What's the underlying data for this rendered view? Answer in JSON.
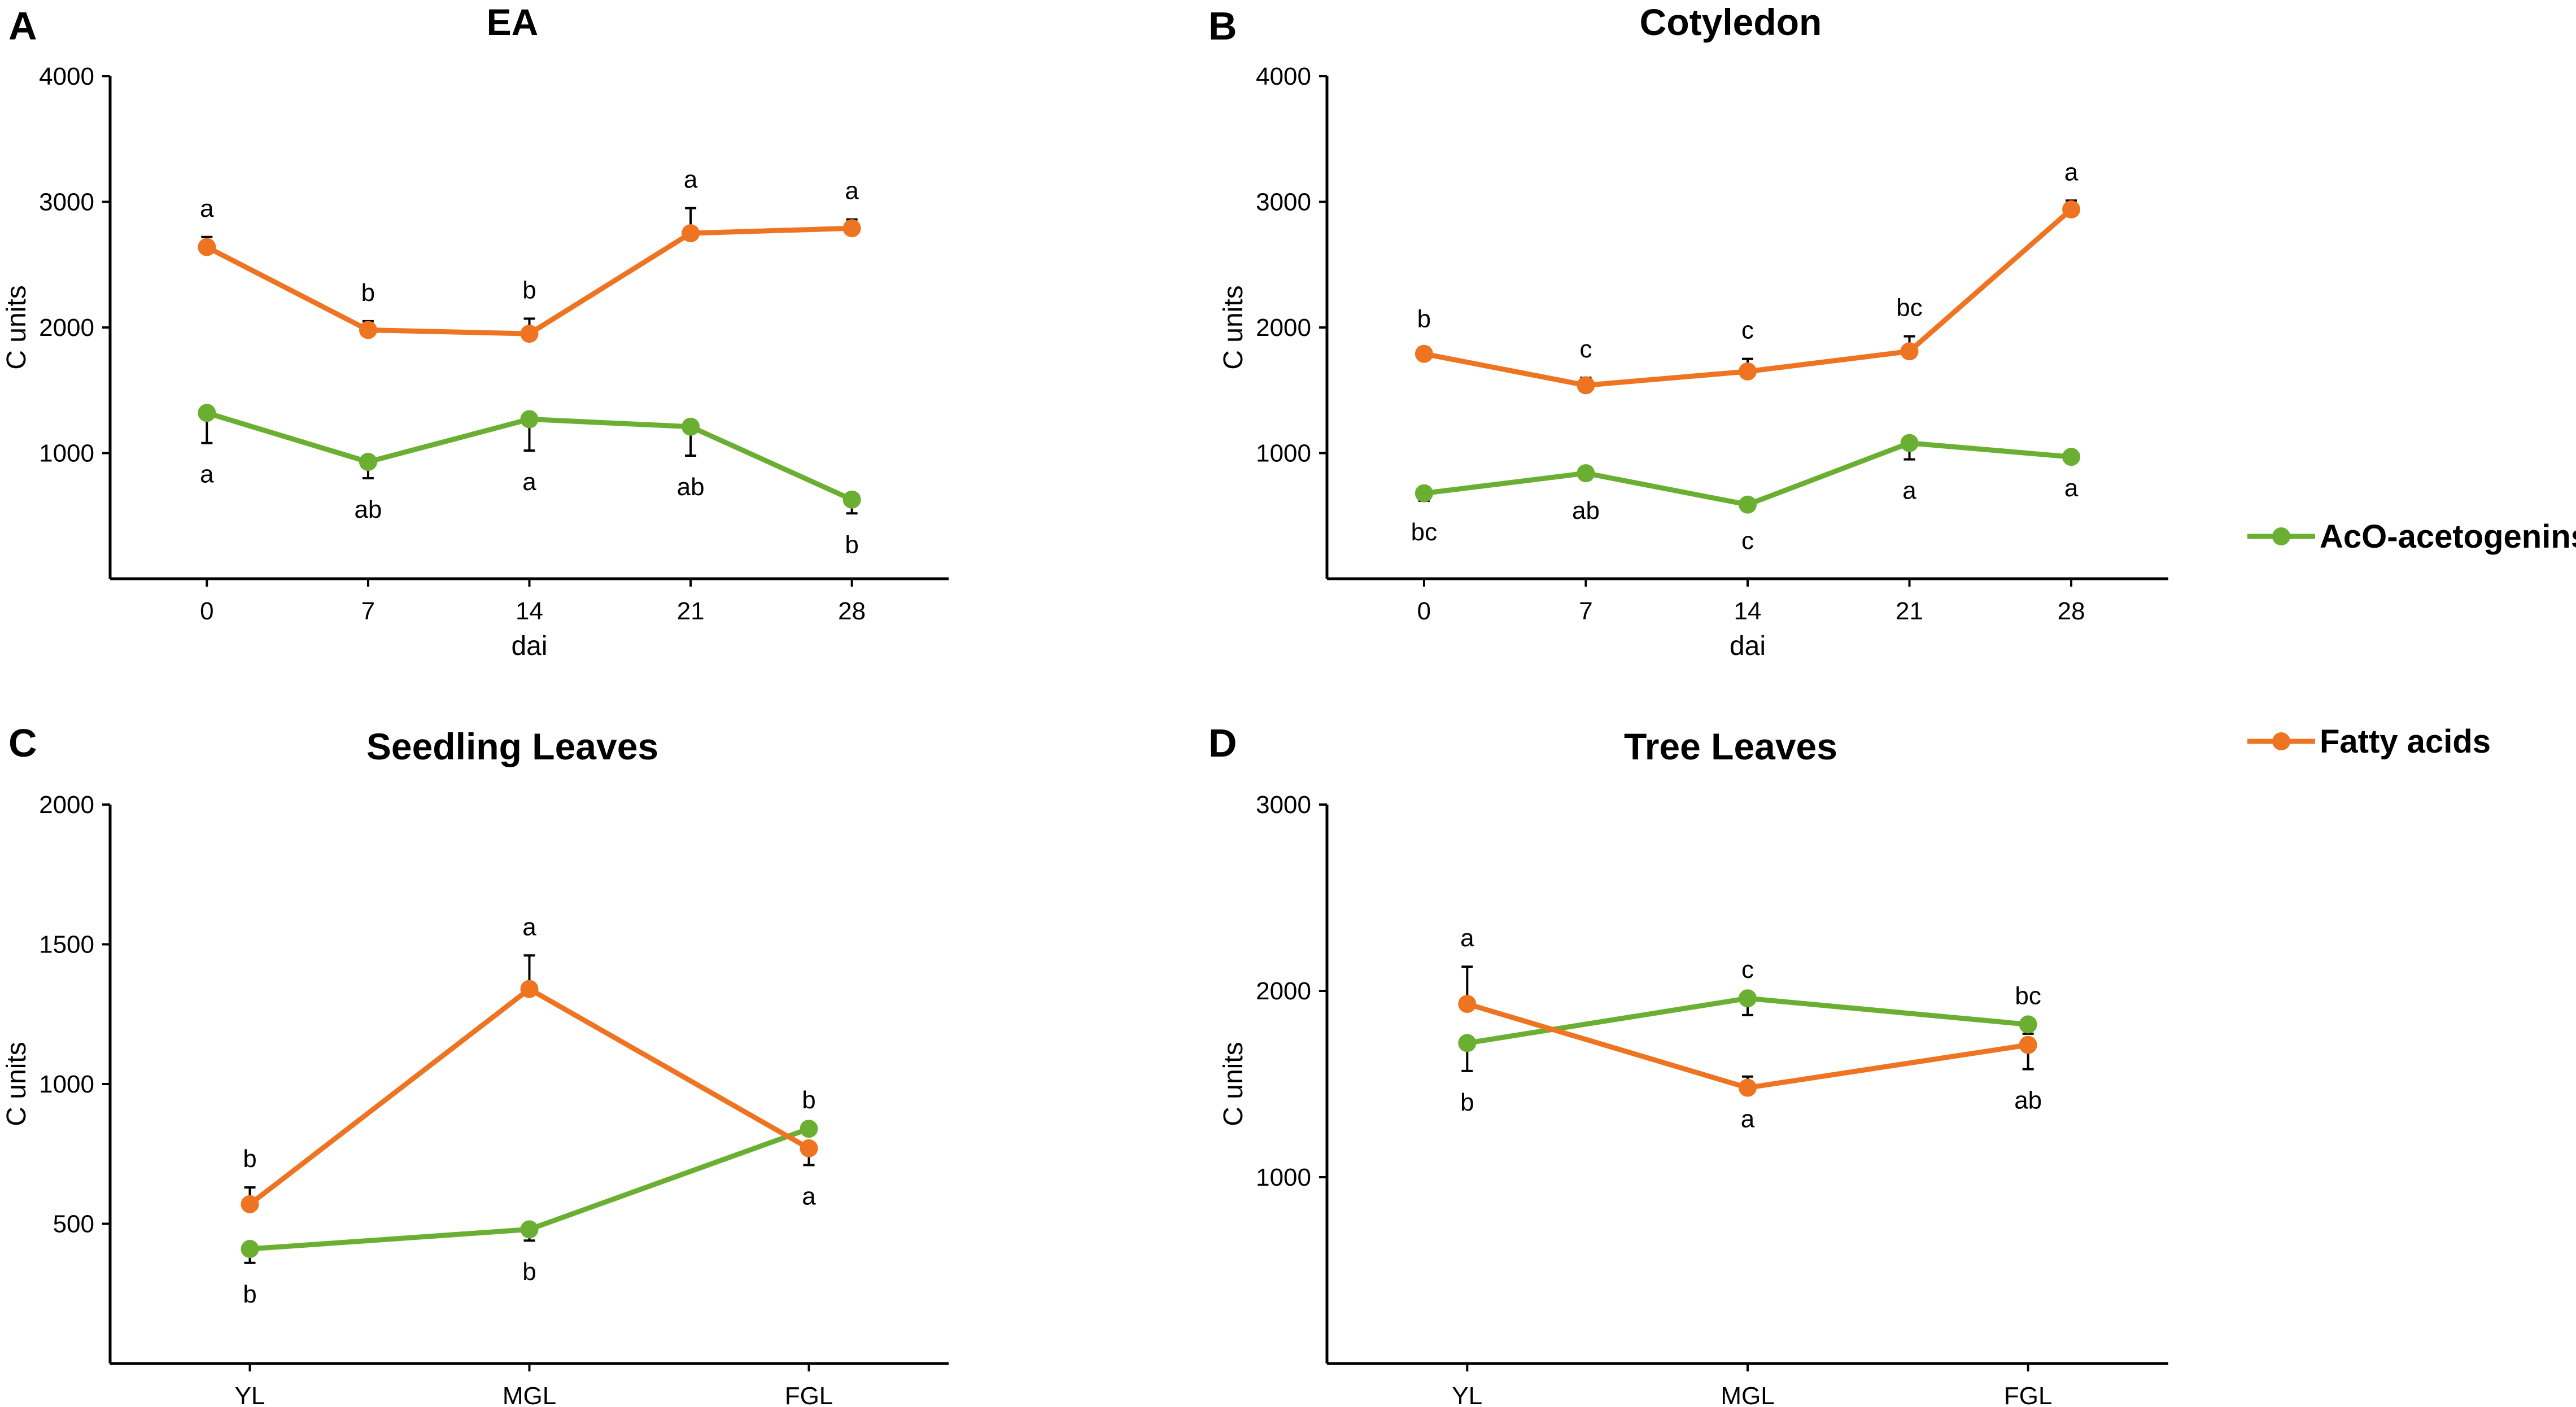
{
  "colors": {
    "acetogenins": "#6aaf32",
    "fatty_acids": "#ee7422",
    "axis": "#000000"
  },
  "legend": [
    {
      "name": "AcO-acetogenins",
      "color": "#6aaf32"
    },
    {
      "name": "Fatty acids",
      "color": "#ee7422"
    }
  ],
  "chart_data": [
    {
      "type": "line",
      "panel": "A",
      "title": "EA",
      "xlabel": "dai",
      "ylabel": "C units",
      "categories": [
        "0",
        "7",
        "14",
        "21",
        "28"
      ],
      "ylim": [
        0,
        4000
      ],
      "yticks": [
        1000,
        2000,
        3000,
        4000
      ],
      "series": [
        {
          "name": "AcO-acetogenins",
          "values": [
            1320,
            930,
            1270,
            1210,
            630
          ],
          "err_low": [
            240,
            130,
            250,
            230,
            110
          ],
          "err_high": [
            0,
            0,
            0,
            0,
            0
          ],
          "labels": [
            "a",
            "ab",
            "a",
            "ab",
            "b"
          ],
          "label_side": [
            "below",
            "below",
            "below",
            "below",
            "below"
          ]
        },
        {
          "name": "Fatty acids",
          "values": [
            2640,
            1980,
            1950,
            2750,
            2790
          ],
          "err_low": [
            0,
            0,
            0,
            0,
            0
          ],
          "err_high": [
            80,
            70,
            120,
            200,
            70
          ],
          "labels": [
            "a",
            "b",
            "b",
            "a",
            "a"
          ],
          "label_side": [
            "above",
            "above",
            "above",
            "above",
            "above"
          ]
        }
      ]
    },
    {
      "type": "line",
      "panel": "B",
      "title": "Cotyledon",
      "xlabel": "dai",
      "ylabel": "C units",
      "categories": [
        "0",
        "7",
        "14",
        "21",
        "28"
      ],
      "ylim": [
        0,
        4000
      ],
      "yticks": [
        1000,
        2000,
        3000,
        4000
      ],
      "series": [
        {
          "name": "AcO-acetogenins",
          "values": [
            680,
            840,
            590,
            1080,
            970
          ],
          "err_low": [
            60,
            50,
            40,
            130,
            0
          ],
          "err_high": [
            0,
            0,
            0,
            0,
            0
          ],
          "labels": [
            "bc",
            "ab",
            "c",
            "a",
            "a"
          ],
          "label_side": [
            "below",
            "below",
            "below",
            "below",
            "below"
          ]
        },
        {
          "name": "Fatty acids",
          "values": [
            1790,
            1540,
            1650,
            1810,
            2940
          ],
          "err_low": [
            0,
            0,
            0,
            0,
            0
          ],
          "err_high": [
            50,
            60,
            100,
            120,
            70
          ],
          "labels": [
            "b",
            "c",
            "c",
            "bc",
            "a"
          ],
          "label_side": [
            "above",
            "above",
            "above",
            "above",
            "above"
          ]
        }
      ]
    },
    {
      "type": "line",
      "panel": "C",
      "title": "Seedling Leaves",
      "xlabel": "",
      "ylabel": "C units",
      "categories": [
        "YL",
        "MGL",
        "FGL"
      ],
      "ylim": [
        0,
        2000
      ],
      "yticks": [
        500,
        1000,
        1500,
        2000
      ],
      "series": [
        {
          "name": "AcO-acetogenins",
          "values": [
            410,
            480,
            840
          ],
          "err_low": [
            50,
            40,
            0
          ],
          "err_high": [
            0,
            0,
            0
          ],
          "labels": [
            "b",
            "b",
            "b"
          ],
          "label_side": [
            "below",
            "below",
            "above"
          ]
        },
        {
          "name": "Fatty acids",
          "values": [
            570,
            1340,
            770
          ],
          "err_low": [
            0,
            0,
            60
          ],
          "err_high": [
            60,
            120,
            0
          ],
          "labels": [
            "b",
            "a",
            "a"
          ],
          "label_side": [
            "above",
            "above",
            "below"
          ]
        }
      ]
    },
    {
      "type": "line",
      "panel": "D",
      "title": "Tree Leaves",
      "xlabel": "",
      "ylabel": "C units",
      "categories": [
        "YL",
        "MGL",
        "FGL"
      ],
      "ylim": [
        0,
        3000
      ],
      "yticks": [
        1000,
        2000,
        3000
      ],
      "series": [
        {
          "name": "AcO-acetogenins",
          "values": [
            1720,
            1960,
            1820
          ],
          "err_low": [
            150,
            90,
            50
          ],
          "err_high": [
            0,
            0,
            0
          ],
          "labels": [
            "b",
            "c",
            "bc"
          ],
          "label_side": [
            "below",
            "above",
            "above"
          ]
        },
        {
          "name": "Fatty acids",
          "values": [
            1930,
            1480,
            1710
          ],
          "err_low": [
            0,
            0,
            130
          ],
          "err_high": [
            200,
            60,
            0
          ],
          "labels": [
            "a",
            "a",
            "ab"
          ],
          "label_side": [
            "above",
            "below",
            "below"
          ]
        }
      ]
    }
  ]
}
